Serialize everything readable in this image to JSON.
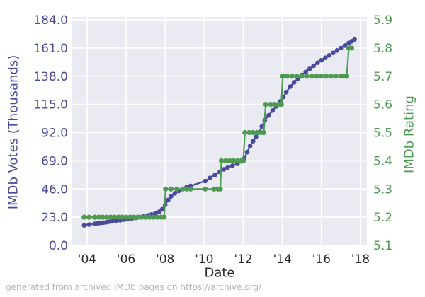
{
  "chart": {
    "left_axis_label": "IMDb Votes (Thousands)",
    "right_axis_label": "IMDb Rating",
    "x_axis_label": "Date",
    "caption": "generated from archived IMDb pages on https://archive.org/"
  },
  "colors": {
    "votes": "#4A4A9C",
    "rating": "#4E9A52",
    "plot_background": "#EAEAF2",
    "gridline": "#FFFFFF",
    "x_tick_text": "#2B2B2B",
    "caption_text": "#B3B3B3"
  },
  "chart_data": {
    "type": "line",
    "title": "",
    "xlabel": "Date",
    "grid": true,
    "legend": "none",
    "x_axis": {
      "tick_labels": [
        "'04",
        "'06",
        "'08",
        "'10",
        "'12",
        "'14",
        "'16",
        "'18"
      ],
      "tick_years": [
        2004,
        2006,
        2008,
        2010,
        2012,
        2014,
        2016,
        2018
      ],
      "range_years": [
        2003.24,
        2018.33
      ]
    },
    "left_axis": {
      "label": "IMDb Votes (Thousands)",
      "tick_labels": [
        "184.0",
        "161.0",
        "138.0",
        "115.0",
        "92.0",
        "69.0",
        "46.0",
        "23.0",
        "0.0"
      ],
      "tick_values": [
        184,
        161,
        138,
        115,
        92,
        69,
        46,
        23,
        0
      ],
      "range": [
        0,
        184
      ]
    },
    "right_axis": {
      "label": "IMDb Rating",
      "tick_labels": [
        "5.9",
        "5.8",
        "5.7",
        "5.6",
        "5.5",
        "5.4",
        "5.3",
        "5.2",
        "5.1"
      ],
      "tick_values": [
        5.9,
        5.8,
        5.7,
        5.6,
        5.5,
        5.4,
        5.3,
        5.2,
        5.1
      ],
      "range": [
        5.1,
        5.9
      ]
    },
    "series": [
      {
        "name": "IMDb Votes (Thousands)",
        "axis": "left",
        "color_key": "votes",
        "points": [
          [
            2003.85,
            16.3
          ],
          [
            2004.1,
            17.0
          ],
          [
            2004.4,
            17.6
          ],
          [
            2004.55,
            18.0
          ],
          [
            2004.7,
            18.3
          ],
          [
            2004.85,
            18.6
          ],
          [
            2005.0,
            19.0
          ],
          [
            2005.15,
            19.3
          ],
          [
            2005.3,
            19.7
          ],
          [
            2005.5,
            20.1
          ],
          [
            2005.7,
            20.5
          ],
          [
            2005.9,
            21.0
          ],
          [
            2006.1,
            21.5
          ],
          [
            2006.3,
            22.0
          ],
          [
            2006.5,
            22.5
          ],
          [
            2006.7,
            23.1
          ],
          [
            2006.9,
            23.7
          ],
          [
            2007.1,
            24.4
          ],
          [
            2007.3,
            25.2
          ],
          [
            2007.5,
            26.2
          ],
          [
            2007.7,
            27.5
          ],
          [
            2007.85,
            29.5
          ],
          [
            2008.0,
            33.0
          ],
          [
            2008.15,
            37.0
          ],
          [
            2008.3,
            40.0
          ],
          [
            2008.5,
            42.5
          ],
          [
            2008.7,
            44.5
          ],
          [
            2008.9,
            46.0
          ],
          [
            2009.1,
            47.5
          ],
          [
            2009.3,
            48.5
          ],
          [
            2010.05,
            52.5
          ],
          [
            2010.3,
            55.0
          ],
          [
            2010.55,
            57.5
          ],
          [
            2010.8,
            60.0
          ],
          [
            2011.0,
            62.0
          ],
          [
            2011.2,
            63.5
          ],
          [
            2011.45,
            65.0
          ],
          [
            2011.7,
            66.5
          ],
          [
            2011.9,
            68.5
          ],
          [
            2012.05,
            71.0
          ],
          [
            2012.2,
            76.0
          ],
          [
            2012.35,
            81.0
          ],
          [
            2012.5,
            85.0
          ],
          [
            2012.65,
            88.5
          ],
          [
            2012.8,
            92.0
          ],
          [
            2012.95,
            97.0
          ],
          [
            2013.1,
            102.0
          ],
          [
            2013.3,
            106.0
          ],
          [
            2013.5,
            110.0
          ],
          [
            2013.7,
            113.5
          ],
          [
            2013.9,
            117.5
          ],
          [
            2014.05,
            121.0
          ],
          [
            2014.2,
            125.0
          ],
          [
            2014.4,
            129.5
          ],
          [
            2014.6,
            133.0
          ],
          [
            2014.8,
            136.0
          ],
          [
            2015.0,
            139.0
          ],
          [
            2015.2,
            141.5
          ],
          [
            2015.4,
            144.0
          ],
          [
            2015.6,
            146.5
          ],
          [
            2015.8,
            149.0
          ],
          [
            2016.0,
            151.0
          ],
          [
            2016.2,
            153.0
          ],
          [
            2016.4,
            155.0
          ],
          [
            2016.6,
            157.0
          ],
          [
            2016.8,
            159.0
          ],
          [
            2017.0,
            161.0
          ],
          [
            2017.2,
            163.0
          ],
          [
            2017.4,
            165.0
          ],
          [
            2017.55,
            166.5
          ],
          [
            2017.7,
            168.0
          ]
        ]
      },
      {
        "name": "IMDb Rating",
        "axis": "right",
        "color_key": "rating",
        "points": [
          [
            2003.85,
            5.2
          ],
          [
            2004.1,
            5.2
          ],
          [
            2004.4,
            5.2
          ],
          [
            2004.6,
            5.2
          ],
          [
            2004.8,
            5.2
          ],
          [
            2005.0,
            5.2
          ],
          [
            2005.2,
            5.2
          ],
          [
            2005.4,
            5.2
          ],
          [
            2005.6,
            5.2
          ],
          [
            2005.8,
            5.2
          ],
          [
            2006.0,
            5.2
          ],
          [
            2006.2,
            5.2
          ],
          [
            2006.4,
            5.2
          ],
          [
            2006.6,
            5.2
          ],
          [
            2006.8,
            5.2
          ],
          [
            2007.0,
            5.2
          ],
          [
            2007.2,
            5.2
          ],
          [
            2007.4,
            5.2
          ],
          [
            2007.6,
            5.2
          ],
          [
            2007.8,
            5.2
          ],
          [
            2007.95,
            5.2
          ],
          [
            2008.02,
            5.3
          ],
          [
            2008.3,
            5.3
          ],
          [
            2008.6,
            5.3
          ],
          [
            2008.9,
            5.3
          ],
          [
            2009.1,
            5.3
          ],
          [
            2009.3,
            5.3
          ],
          [
            2010.05,
            5.3
          ],
          [
            2010.5,
            5.3
          ],
          [
            2010.7,
            5.3
          ],
          [
            2010.82,
            5.3
          ],
          [
            2010.88,
            5.4
          ],
          [
            2011.1,
            5.4
          ],
          [
            2011.3,
            5.4
          ],
          [
            2011.5,
            5.4
          ],
          [
            2011.7,
            5.4
          ],
          [
            2011.9,
            5.4
          ],
          [
            2012.0,
            5.4
          ],
          [
            2012.08,
            5.5
          ],
          [
            2012.3,
            5.5
          ],
          [
            2012.5,
            5.5
          ],
          [
            2012.7,
            5.5
          ],
          [
            2012.9,
            5.5
          ],
          [
            2013.05,
            5.5
          ],
          [
            2013.15,
            5.6
          ],
          [
            2013.4,
            5.6
          ],
          [
            2013.6,
            5.6
          ],
          [
            2013.8,
            5.6
          ],
          [
            2013.95,
            5.6
          ],
          [
            2014.02,
            5.7
          ],
          [
            2014.25,
            5.7
          ],
          [
            2014.5,
            5.7
          ],
          [
            2014.75,
            5.7
          ],
          [
            2015.0,
            5.7
          ],
          [
            2015.25,
            5.7
          ],
          [
            2015.5,
            5.7
          ],
          [
            2015.75,
            5.7
          ],
          [
            2016.0,
            5.7
          ],
          [
            2016.25,
            5.7
          ],
          [
            2016.5,
            5.7
          ],
          [
            2016.75,
            5.7
          ],
          [
            2017.0,
            5.7
          ],
          [
            2017.15,
            5.7
          ],
          [
            2017.3,
            5.7
          ],
          [
            2017.4,
            5.8
          ],
          [
            2017.55,
            5.8
          ]
        ]
      }
    ]
  }
}
